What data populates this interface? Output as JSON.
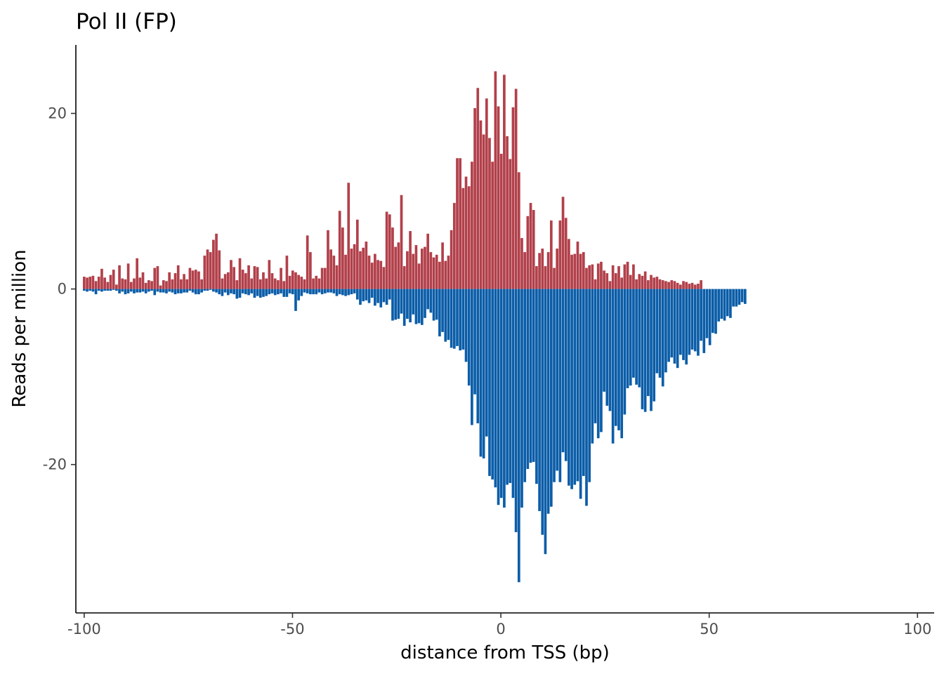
{
  "chart_data": {
    "type": "bar",
    "title": "Pol II (FP)",
    "xlabel": "distance from TSS (bp)",
    "ylabel": "Reads per million",
    "xlim": [
      -102,
      104
    ],
    "ylim": [
      -36.9,
      27.8
    ],
    "x_ticks": [
      {
        "value": -100,
        "label": "-100"
      },
      {
        "value": -50,
        "label": "-50"
      },
      {
        "value": 0,
        "label": "0"
      },
      {
        "value": 50,
        "label": "50"
      },
      {
        "value": 100,
        "label": "100"
      }
    ],
    "y_ticks": [
      {
        "value": 20,
        "label": "20"
      },
      {
        "value": 0,
        "label": "0"
      },
      {
        "value": -20,
        "label": "-20"
      }
    ],
    "grid": false,
    "legend": "none",
    "bar_width_bp": 0.62,
    "x_start": -100,
    "x_step": 0.705,
    "series": [
      {
        "color": "#b2404a",
        "values": [
          1.4,
          1.3,
          1.4,
          1.5,
          0.9,
          1.4,
          2.3,
          1.3,
          0.8,
          1.6,
          2.2,
          0.5,
          2.7,
          1.2,
          1.1,
          2.9,
          0.8,
          1.2,
          3.5,
          1.3,
          1.9,
          0.7,
          1.0,
          0.9,
          2.4,
          2.6,
          0.4,
          1.0,
          0.9,
          1.9,
          1.1,
          1.8,
          2.7,
          1.1,
          1.7,
          1.1,
          2.4,
          2.1,
          2.2,
          2.0,
          1.1,
          3.8,
          4.5,
          4.2,
          5.6,
          6.3,
          4.4,
          1.2,
          1.7,
          1.9,
          3.3,
          2.5,
          1.0,
          3.5,
          2.2,
          1.8,
          2.7,
          1.2,
          2.6,
          2.5,
          1.1,
          1.9,
          1.2,
          3.3,
          1.8,
          1.2,
          1.0,
          2.4,
          0.9,
          3.8,
          1.5,
          2.1,
          1.9,
          1.6,
          1.4,
          1.1,
          6.1,
          4.2,
          1.2,
          1.5,
          1.2,
          2.4,
          2.4,
          6.7,
          4.5,
          3.8,
          2.7,
          8.9,
          7.0,
          3.9,
          12.1,
          4.6,
          5.1,
          7.9,
          4.3,
          4.7,
          5.4,
          3.8,
          3.0,
          4.0,
          3.3,
          3.2,
          2.5,
          8.8,
          8.5,
          7.0,
          4.8,
          5.3,
          10.7,
          2.6,
          4.3,
          6.6,
          4.0,
          5.0,
          2.9,
          4.6,
          4.8,
          6.3,
          4.2,
          3.6,
          3.9,
          3.1,
          5.3,
          3.2,
          3.8,
          6.7,
          9.8,
          14.9,
          14.9,
          11.5,
          12.8,
          11.7,
          14.5,
          20.6,
          22.9,
          19.2,
          17.6,
          21.7,
          17.2,
          14.5,
          24.8,
          20.8,
          15.4,
          24.4,
          17.4,
          14.8,
          20.7,
          22.8,
          13.3,
          5.8,
          4.2,
          8.3,
          9.8,
          9.0,
          2.6,
          4.1,
          4.6,
          2.6,
          4.2,
          7.8,
          2.4,
          4.6,
          7.8,
          10.5,
          8.1,
          5.7,
          3.9,
          4.0,
          5.4,
          4.0,
          4.2,
          2.4,
          2.7,
          2.8,
          1.1,
          2.9,
          3.1,
          2.1,
          1.8,
          0.9,
          2.7,
          1.8,
          2.6,
          1.3,
          2.8,
          3.1,
          1.6,
          2.8,
          1.1,
          1.7,
          1.5,
          2.0,
          1.0,
          1.6,
          1.3,
          1.4,
          1.1,
          1.0,
          0.9,
          0.8,
          1.0,
          0.9,
          0.7,
          0.5,
          0.9,
          0.8,
          0.6,
          0.7,
          0.5,
          0.6,
          1.0
        ]
      },
      {
        "color": "#0b5da8",
        "values": [
          -0.2,
          -0.3,
          -0.2,
          -0.3,
          -0.6,
          -0.2,
          -0.3,
          -0.2,
          -0.2,
          -0.2,
          -0.1,
          -0.2,
          -0.5,
          -0.3,
          -0.6,
          -0.5,
          -0.3,
          -0.5,
          -0.4,
          -0.4,
          -0.3,
          -0.5,
          -0.3,
          -0.2,
          -0.7,
          -0.3,
          -0.4,
          -0.4,
          -0.5,
          -0.3,
          -0.4,
          -0.6,
          -0.5,
          -0.5,
          -0.4,
          -0.4,
          -0.2,
          -0.4,
          -0.6,
          -0.6,
          -0.4,
          -0.2,
          -0.2,
          -0.1,
          -0.3,
          -0.4,
          -0.6,
          -0.8,
          -0.4,
          -0.7,
          -0.5,
          -0.6,
          -1.1,
          -1.0,
          -0.5,
          -0.6,
          -0.7,
          -0.5,
          -1.0,
          -0.8,
          -1.0,
          -0.9,
          -0.8,
          -0.6,
          -0.5,
          -0.7,
          -0.6,
          -0.5,
          -0.9,
          -0.9,
          -0.5,
          -0.6,
          -2.5,
          -1.3,
          -0.8,
          -0.4,
          -0.5,
          -0.6,
          -0.6,
          -0.6,
          -0.4,
          -0.6,
          -0.5,
          -0.4,
          -0.4,
          -0.5,
          -0.8,
          -0.6,
          -0.7,
          -0.8,
          -0.7,
          -0.6,
          -0.5,
          -1.2,
          -1.8,
          -1.4,
          -1.3,
          -1.6,
          -1.0,
          -1.9,
          -1.6,
          -2.1,
          -1.5,
          -1.8,
          -1.2,
          -3.6,
          -3.5,
          -3.4,
          -2.8,
          -4.2,
          -3.4,
          -3.8,
          -2.9,
          -4.0,
          -3.9,
          -4.1,
          -3.3,
          -2.3,
          -2.7,
          -3.6,
          -3.5,
          -5.4,
          -4.9,
          -6.0,
          -5.8,
          -6.7,
          -6.8,
          -6.5,
          -7.0,
          -6.9,
          -8.3,
          -11.0,
          -15.5,
          -12.0,
          -15.3,
          -19.1,
          -19.3,
          -16.8,
          -21.3,
          -21.7,
          -22.6,
          -24.6,
          -23.8,
          -24.9,
          -22.3,
          -22.1,
          -23.8,
          -27.7,
          -33.4,
          -24.9,
          -22.0,
          -20.5,
          -19.8,
          -19.7,
          -22.2,
          -25.3,
          -28.0,
          -30.2,
          -25.6,
          -24.8,
          -22.0,
          -20.7,
          -22.0,
          -18.6,
          -19.6,
          -22.4,
          -22.8,
          -22.3,
          -21.9,
          -23.9,
          -21.3,
          -24.7,
          -22.0,
          -17.6,
          -15.3,
          -17.0,
          -16.3,
          -11.7,
          -13.3,
          -13.9,
          -17.6,
          -15.6,
          -16.1,
          -17.0,
          -14.3,
          -11.3,
          -11.0,
          -10.1,
          -10.9,
          -11.2,
          -13.7,
          -14.0,
          -12.2,
          -13.9,
          -12.8,
          -9.6,
          -10.1,
          -11.1,
          -9.5,
          -8.3,
          -7.8,
          -8.5,
          -9.0,
          -7.5,
          -8.1,
          -8.6,
          -7.5,
          -6.9,
          -7.1,
          -7.6,
          -5.9,
          -7.3,
          -5.6,
          -6.4,
          -5.0,
          -5.1,
          -3.7,
          -3.4,
          -3.6,
          -3.1,
          -3.3,
          -2.0,
          -2.0,
          -1.8,
          -1.5,
          -1.7
        ]
      }
    ]
  }
}
